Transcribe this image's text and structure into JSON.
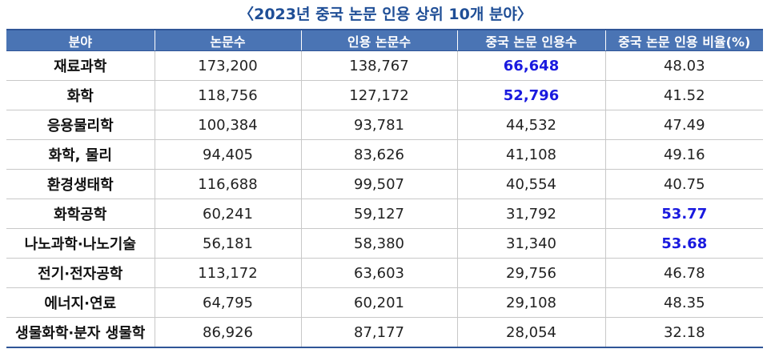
{
  "title": "〈2023년 중국 논문 인용 상위 10개 분야〉",
  "headers": [
    "분야",
    "논문수",
    "인용 논문수",
    "중국 논문 인용수",
    "중국 논문 인용 비율(%)"
  ],
  "highlight_color": "#1a1adf",
  "rows": [
    {
      "field": "재료과학",
      "papers": "173,200",
      "cited_papers": "138,767",
      "china_citations": "66,648",
      "china_ratio": "48.03"
    },
    {
      "field": "화학",
      "papers": "118,756",
      "cited_papers": "127,172",
      "china_citations": "52,796",
      "china_ratio": "41.52"
    },
    {
      "field": "응용물리학",
      "papers": "100,384",
      "cited_papers": "93,781",
      "china_citations": "44,532",
      "china_ratio": "47.49"
    },
    {
      "field": "화학, 물리",
      "papers": "94,405",
      "cited_papers": "83,626",
      "china_citations": "41,108",
      "china_ratio": "49.16"
    },
    {
      "field": "환경생태학",
      "papers": "116,688",
      "cited_papers": "99,507",
      "china_citations": "40,554",
      "china_ratio": "40.75"
    },
    {
      "field": "화학공학",
      "papers": "60,241",
      "cited_papers": "59,127",
      "china_citations": "31,792",
      "china_ratio": "53.77"
    },
    {
      "field": "나노과학·나노기술",
      "papers": "56,181",
      "cited_papers": "58,380",
      "china_citations": "31,340",
      "china_ratio": "53.68"
    },
    {
      "field": "전기·전자공학",
      "papers": "113,172",
      "cited_papers": "63,603",
      "china_citations": "29,756",
      "china_ratio": "46.78"
    },
    {
      "field": "에너지·연료",
      "papers": "64,795",
      "cited_papers": "60,201",
      "china_citations": "29,108",
      "china_ratio": "48.35"
    },
    {
      "field": "생물화학·분자 생물학",
      "papers": "86,926",
      "cited_papers": "87,177",
      "china_citations": "28,054",
      "china_ratio": "32.18"
    }
  ]
}
